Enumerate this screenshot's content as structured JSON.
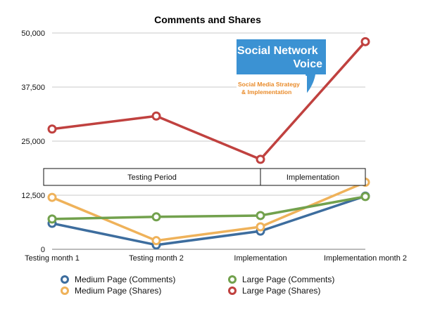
{
  "chart_data": {
    "type": "line",
    "title": "Comments and Shares",
    "categories": [
      "Testing month 1",
      "Testing month 2",
      "Implementation",
      "Implementation month 2"
    ],
    "ylim": [
      0,
      50000
    ],
    "yticks": [
      0,
      12500,
      25000,
      37500,
      50000
    ],
    "ytick_labels": [
      "0",
      "12,500",
      "25,000",
      "37,500",
      "50,000"
    ],
    "grid": true,
    "legend_position": "bottom",
    "series": [
      {
        "name": "Medium Page (Comments)",
        "color": "#3d6d9e",
        "values": [
          6000,
          1000,
          4200,
          12300
        ]
      },
      {
        "name": "Medium Page (Shares)",
        "color": "#efb25a",
        "values": [
          12000,
          2000,
          5200,
          15500
        ]
      },
      {
        "name": "Large Page (Comments)",
        "color": "#72a14d",
        "values": [
          7000,
          7500,
          7800,
          12200
        ]
      },
      {
        "name": "Large Page (Shares)",
        "color": "#c0413f",
        "values": [
          27800,
          30800,
          20800,
          48000
        ]
      }
    ],
    "annotations": {
      "periods": [
        {
          "label": "Testing Period",
          "span": [
            0,
            2
          ]
        },
        {
          "label": "Implementation",
          "span": [
            2,
            3
          ]
        }
      ]
    }
  },
  "logo": {
    "line1": "Social Network",
    "line2": "Voice",
    "tagline1": "Social Media Strategy",
    "tagline2": "& Implementation",
    "bg_color": "#3b92d3",
    "tagline_color": "#e98b2a"
  }
}
